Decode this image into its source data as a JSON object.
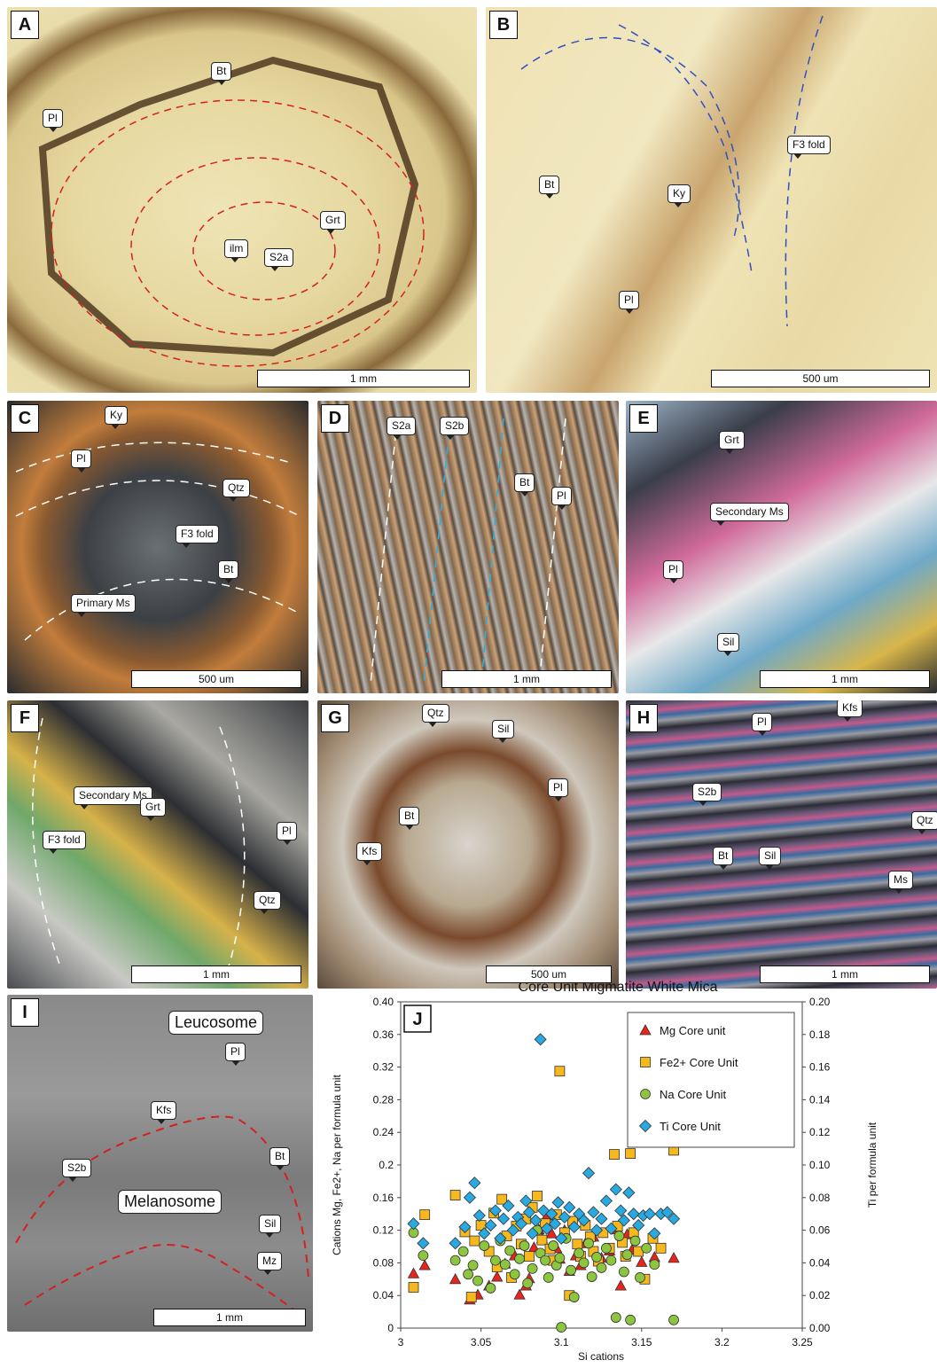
{
  "panels": {
    "A": {
      "letter": "A",
      "labels": [
        "Pl",
        "Bt",
        "Grt",
        "ilm",
        "S2a"
      ],
      "scale": "1 mm"
    },
    "B": {
      "letter": "B",
      "labels": [
        "Bt",
        "Ky",
        "F3 fold",
        "Pl"
      ],
      "scale": "500 um"
    },
    "C": {
      "letter": "C",
      "labels": [
        "Ky",
        "Pl",
        "Qtz",
        "F3 fold",
        "Bt",
        "Primary Ms"
      ],
      "scale": "500 um"
    },
    "D": {
      "letter": "D",
      "labels": [
        "S2a",
        "S2b",
        "Bt",
        "Pl"
      ],
      "scale": "1 mm"
    },
    "E": {
      "letter": "E",
      "labels": [
        "Grt",
        "Secondary Ms",
        "Pl",
        "Sil"
      ],
      "scale": "1 mm"
    },
    "F": {
      "letter": "F",
      "labels": [
        "Secondary Ms",
        "Grt",
        "F3 fold",
        "Pl",
        "Qtz"
      ],
      "scale": "1 mm"
    },
    "G": {
      "letter": "G",
      "labels": [
        "Qtz",
        "Sil",
        "Pl",
        "Bt",
        "Kfs"
      ],
      "scale": "500 um"
    },
    "H": {
      "letter": "H",
      "labels": [
        "Pl",
        "Kfs",
        "S2b",
        "Qtz",
        "Bt",
        "Sil",
        "Ms"
      ],
      "scale": "1 mm"
    },
    "I": {
      "letter": "I",
      "labels": [
        "Leucosome",
        "Pl",
        "Kfs",
        "Bt",
        "S2b",
        "Melanosome",
        "Sil",
        "Mz"
      ],
      "scale": "1 mm"
    }
  },
  "chart_data": {
    "type": "scatter",
    "panel_letter": "J",
    "title": "Core Unit Migmatite White Mica",
    "xlabel": "Si cations",
    "ylabel": "Cations Mg, Fe2+, Na per formula unit",
    "y2label": "Ti per formula unit",
    "xlim": [
      3,
      3.25
    ],
    "ylim": [
      0,
      0.4
    ],
    "y2lim": [
      0,
      0.2
    ],
    "xticks": [
      "3",
      "3.05",
      "3.1",
      "3.15",
      "3.2",
      "3.25"
    ],
    "yticks": [
      "0",
      "0.04",
      "0.08",
      "0.12",
      "0.16",
      "0.2",
      "0.24",
      "0.28",
      "0.32",
      "0.36",
      "0.40"
    ],
    "y2ticks": [
      "0.00",
      "0.02",
      "0.04",
      "0.06",
      "0.08",
      "0.10",
      "0.12",
      "0.14",
      "0.16",
      "0.18",
      "0.20"
    ],
    "legend_position": "top-right",
    "colors": {
      "mg": "#e8241c",
      "fe": "#f6b81d",
      "na": "#8cc63f",
      "ti": "#29a9e1"
    },
    "series": [
      {
        "name": "Mg Core unit",
        "marker": "triangle",
        "axis": "left",
        "points": [
          [
            3.008,
            0.067
          ],
          [
            3.015,
            0.077
          ],
          [
            3.034,
            0.06
          ],
          [
            3.043,
            0.035
          ],
          [
            3.048,
            0.041
          ],
          [
            3.055,
            0.052
          ],
          [
            3.06,
            0.063
          ],
          [
            3.065,
            0.079
          ],
          [
            3.071,
            0.089
          ],
          [
            3.074,
            0.041
          ],
          [
            3.078,
            0.052
          ],
          [
            3.08,
            0.061
          ],
          [
            3.083,
            0.099
          ],
          [
            3.086,
            0.121
          ],
          [
            3.088,
            0.11
          ],
          [
            3.091,
            0.138
          ],
          [
            3.094,
            0.116
          ],
          [
            3.097,
            0.098
          ],
          [
            3.099,
            0.085
          ],
          [
            3.102,
            0.12
          ],
          [
            3.105,
            0.07
          ],
          [
            3.109,
            0.089
          ],
          [
            3.112,
            0.077
          ],
          [
            3.115,
            0.104
          ],
          [
            3.12,
            0.112
          ],
          [
            3.125,
            0.086
          ],
          [
            3.13,
            0.095
          ],
          [
            3.134,
            0.121
          ],
          [
            3.137,
            0.052
          ],
          [
            3.141,
            0.115
          ],
          [
            3.144,
            0.096
          ],
          [
            3.15,
            0.081
          ],
          [
            3.158,
            0.087
          ],
          [
            3.17,
            0.086
          ]
        ]
      },
      {
        "name": "Fe2+ Core Unit",
        "marker": "square",
        "axis": "left",
        "points": [
          [
            3.008,
            0.05
          ],
          [
            3.015,
            0.139
          ],
          [
            3.034,
            0.163
          ],
          [
            3.04,
            0.118
          ],
          [
            3.044,
            0.038
          ],
          [
            3.046,
            0.107
          ],
          [
            3.05,
            0.126
          ],
          [
            3.055,
            0.094
          ],
          [
            3.058,
            0.141
          ],
          [
            3.06,
            0.075
          ],
          [
            3.063,
            0.158
          ],
          [
            3.066,
            0.113
          ],
          [
            3.069,
            0.062
          ],
          [
            3.072,
            0.125
          ],
          [
            3.075,
            0.103
          ],
          [
            3.078,
            0.134
          ],
          [
            3.08,
            0.088
          ],
          [
            3.082,
            0.148
          ],
          [
            3.085,
            0.162
          ],
          [
            3.088,
            0.108
          ],
          [
            3.09,
            0.128
          ],
          [
            3.093,
            0.097
          ],
          [
            3.095,
            0.083
          ],
          [
            3.097,
            0.139
          ],
          [
            3.099,
            0.315
          ],
          [
            3.102,
            0.117
          ],
          [
            3.105,
            0.04
          ],
          [
            3.107,
            0.131
          ],
          [
            3.11,
            0.103
          ],
          [
            3.112,
            0.088
          ],
          [
            3.115,
            0.126
          ],
          [
            3.118,
            0.112
          ],
          [
            3.12,
            0.094
          ],
          [
            3.123,
            0.082
          ],
          [
            3.126,
            0.117
          ],
          [
            3.13,
            0.098
          ],
          [
            3.133,
            0.213
          ],
          [
            3.135,
            0.125
          ],
          [
            3.138,
            0.105
          ],
          [
            3.14,
            0.088
          ],
          [
            3.143,
            0.214
          ],
          [
            3.145,
            0.117
          ],
          [
            3.148,
            0.094
          ],
          [
            3.152,
            0.06
          ],
          [
            3.157,
            0.11
          ],
          [
            3.162,
            0.098
          ],
          [
            3.17,
            0.218
          ]
        ]
      },
      {
        "name": "Na Core Unit",
        "marker": "circle",
        "axis": "left",
        "points": [
          [
            3.008,
            0.117
          ],
          [
            3.014,
            0.089
          ],
          [
            3.034,
            0.083
          ],
          [
            3.039,
            0.094
          ],
          [
            3.042,
            0.066
          ],
          [
            3.045,
            0.077
          ],
          [
            3.048,
            0.058
          ],
          [
            3.052,
            0.101
          ],
          [
            3.056,
            0.049
          ],
          [
            3.059,
            0.083
          ],
          [
            3.062,
            0.107
          ],
          [
            3.065,
            0.078
          ],
          [
            3.068,
            0.095
          ],
          [
            3.071,
            0.066
          ],
          [
            3.074,
            0.085
          ],
          [
            3.077,
            0.101
          ],
          [
            3.079,
            0.055
          ],
          [
            3.082,
            0.073
          ],
          [
            3.085,
            0.12
          ],
          [
            3.087,
            0.092
          ],
          [
            3.09,
            0.083
          ],
          [
            3.092,
            0.062
          ],
          [
            3.095,
            0.101
          ],
          [
            3.097,
            0.077
          ],
          [
            3.099,
            0.086
          ],
          [
            3.1,
            0.001
          ],
          [
            3.103,
            0.11
          ],
          [
            3.106,
            0.071
          ],
          [
            3.108,
            0.038
          ],
          [
            3.111,
            0.092
          ],
          [
            3.114,
            0.08
          ],
          [
            3.117,
            0.104
          ],
          [
            3.119,
            0.063
          ],
          [
            3.122,
            0.087
          ],
          [
            3.125,
            0.074
          ],
          [
            3.128,
            0.098
          ],
          [
            3.131,
            0.083
          ],
          [
            3.134,
            0.013
          ],
          [
            3.136,
            0.113
          ],
          [
            3.139,
            0.069
          ],
          [
            3.141,
            0.09
          ],
          [
            3.143,
            0.01
          ],
          [
            3.146,
            0.107
          ],
          [
            3.149,
            0.062
          ],
          [
            3.153,
            0.098
          ],
          [
            3.158,
            0.078
          ],
          [
            3.17,
            0.01
          ]
        ]
      },
      {
        "name": "Ti Core Unit",
        "marker": "diamond",
        "axis": "right",
        "points": [
          [
            3.008,
            0.064
          ],
          [
            3.014,
            0.052
          ],
          [
            3.034,
            0.052
          ],
          [
            3.04,
            0.062
          ],
          [
            3.043,
            0.08
          ],
          [
            3.046,
            0.089
          ],
          [
            3.049,
            0.069
          ],
          [
            3.052,
            0.058
          ],
          [
            3.056,
            0.063
          ],
          [
            3.059,
            0.072
          ],
          [
            3.062,
            0.055
          ],
          [
            3.064,
            0.067
          ],
          [
            3.067,
            0.075
          ],
          [
            3.07,
            0.06
          ],
          [
            3.073,
            0.068
          ],
          [
            3.075,
            0.064
          ],
          [
            3.078,
            0.078
          ],
          [
            3.08,
            0.071
          ],
          [
            3.082,
            0.058
          ],
          [
            3.084,
            0.066
          ],
          [
            3.087,
            0.177
          ],
          [
            3.089,
            0.072
          ],
          [
            3.091,
            0.061
          ],
          [
            3.094,
            0.07
          ],
          [
            3.096,
            0.064
          ],
          [
            3.098,
            0.077
          ],
          [
            3.1,
            0.055
          ],
          [
            3.102,
            0.068
          ],
          [
            3.105,
            0.074
          ],
          [
            3.108,
            0.062
          ],
          [
            3.111,
            0.07
          ],
          [
            3.114,
            0.066
          ],
          [
            3.117,
            0.095
          ],
          [
            3.12,
            0.071
          ],
          [
            3.122,
            0.06
          ],
          [
            3.125,
            0.067
          ],
          [
            3.128,
            0.078
          ],
          [
            3.131,
            0.061
          ],
          [
            3.134,
            0.085
          ],
          [
            3.137,
            0.072
          ],
          [
            3.139,
            0.066
          ],
          [
            3.142,
            0.083
          ],
          [
            3.145,
            0.07
          ],
          [
            3.148,
            0.063
          ],
          [
            3.151,
            0.069
          ],
          [
            3.155,
            0.07
          ],
          [
            3.158,
            0.058
          ],
          [
            3.162,
            0.07
          ],
          [
            3.166,
            0.071
          ],
          [
            3.17,
            0.067
          ]
        ]
      }
    ]
  }
}
